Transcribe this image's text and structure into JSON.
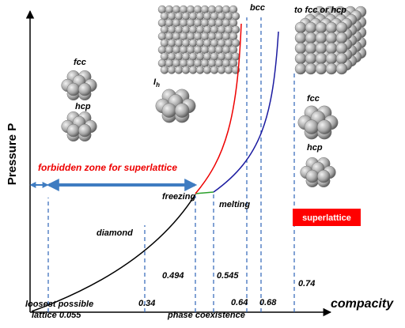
{
  "axes": {
    "y_label": "Pressure P",
    "x_label": "compacity"
  },
  "markers": [
    {
      "label": "loosest possible",
      "label2": "lattice 0.055"
    },
    {
      "label": "0.34"
    },
    {
      "label": "0.494"
    },
    {
      "label": "0.545"
    },
    {
      "label": "0.64"
    },
    {
      "label": "0.68"
    },
    {
      "label": "0.74"
    }
  ],
  "annotations": {
    "forbidden": "forbidden zone for superlattice",
    "freezing": "freezing",
    "melting": "melting",
    "diamond": "diamond",
    "phase_coexistence": "phase coexistence",
    "superlattice": "superlattice",
    "bcc": "bcc",
    "to_fcc_hcp": "to fcc or hcp"
  },
  "structures": {
    "fcc_left": "fcc",
    "hcp_left": "hcp",
    "ih": "I",
    "ih_sub": "h",
    "fcc_right": "fcc",
    "hcp_right": "hcp"
  }
}
